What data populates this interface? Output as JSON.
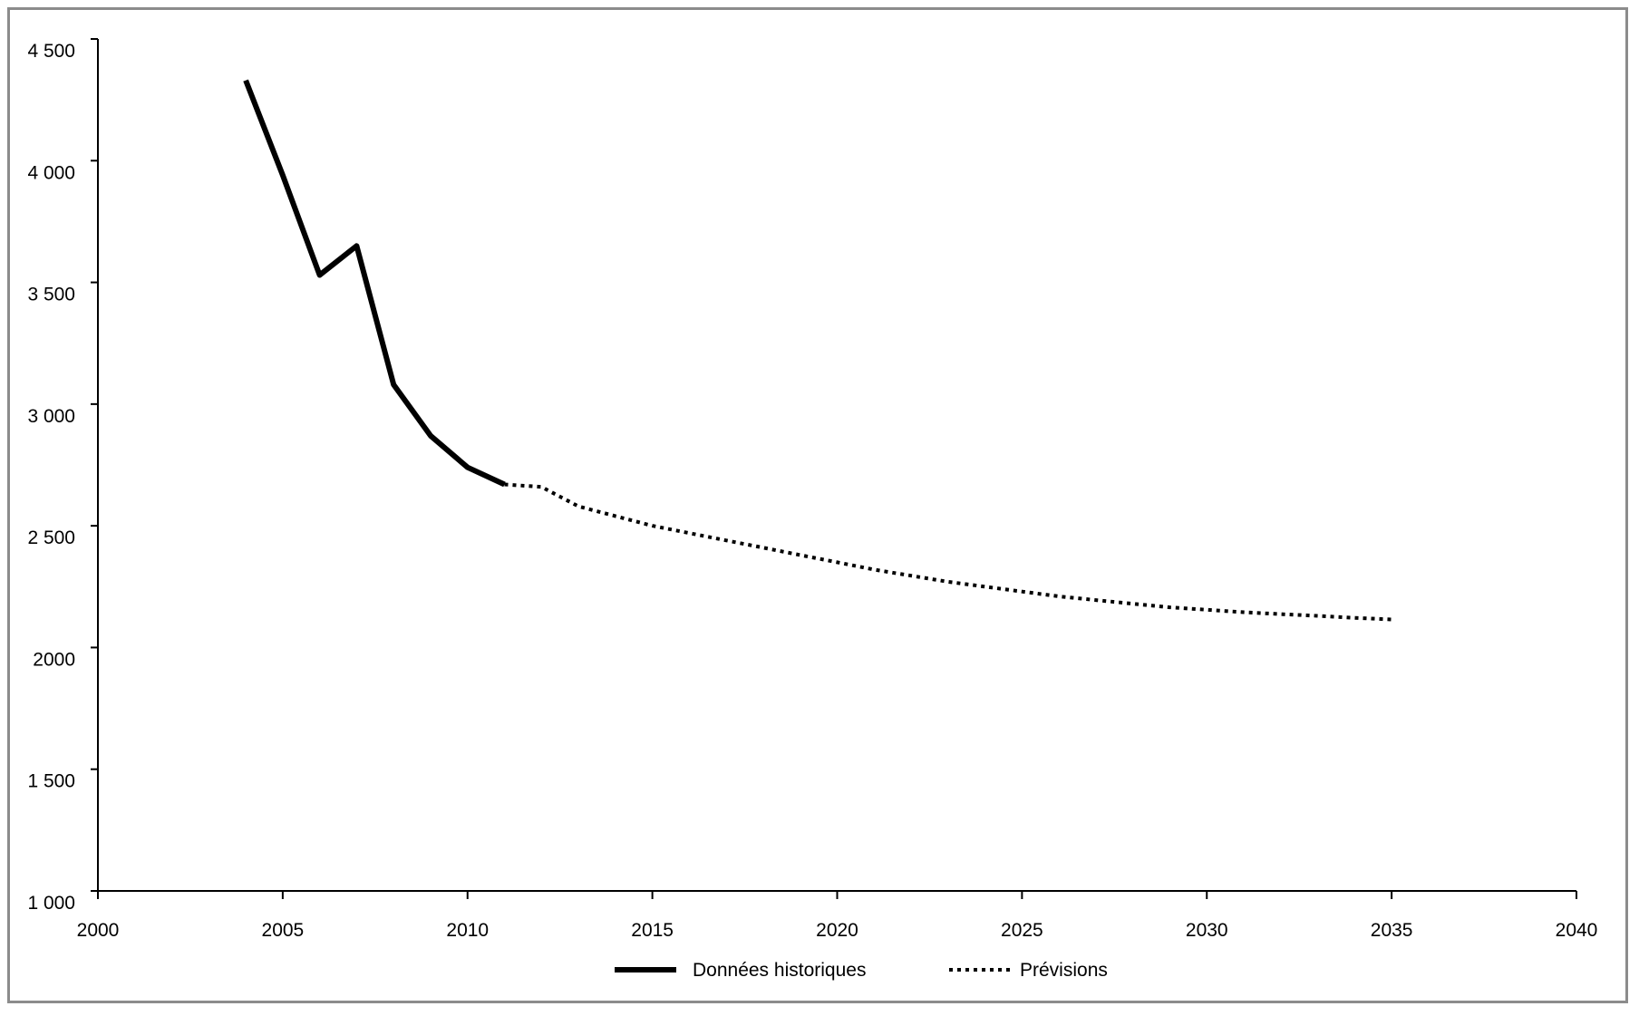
{
  "chart_data": {
    "type": "line",
    "title": "",
    "xlabel": "",
    "ylabel": "",
    "xlim": [
      2000,
      2040
    ],
    "ylim": [
      1000,
      4500
    ],
    "x_ticks": [
      2000,
      2005,
      2010,
      2015,
      2020,
      2025,
      2030,
      2035,
      2040
    ],
    "y_ticks": [
      1000,
      1500,
      2000,
      2500,
      3000,
      3500,
      4000,
      4500
    ],
    "y_tick_labels": [
      "1 000",
      "1 500",
      "2000",
      "2 500",
      "3 000",
      "3 500",
      "4 000",
      "4 500"
    ],
    "grid": false,
    "legend_position": "bottom",
    "series": [
      {
        "name": "Données historiques",
        "style": "solid",
        "color": "#000000",
        "points": [
          [
            2004,
            4330
          ],
          [
            2005,
            3940
          ],
          [
            2006,
            3530
          ],
          [
            2007,
            3650
          ],
          [
            2008,
            3080
          ],
          [
            2009,
            2870
          ],
          [
            2010,
            2740
          ],
          [
            2011,
            2670
          ]
        ]
      },
      {
        "name": "Prévisions",
        "style": "dotted",
        "color": "#000000",
        "points": [
          [
            2011,
            2670
          ],
          [
            2012,
            2660
          ],
          [
            2013,
            2580
          ],
          [
            2014,
            2540
          ],
          [
            2015,
            2500
          ],
          [
            2016,
            2470
          ],
          [
            2017,
            2440
          ],
          [
            2018,
            2410
          ],
          [
            2019,
            2380
          ],
          [
            2020,
            2350
          ],
          [
            2021,
            2320
          ],
          [
            2022,
            2295
          ],
          [
            2023,
            2270
          ],
          [
            2024,
            2250
          ],
          [
            2025,
            2230
          ],
          [
            2026,
            2210
          ],
          [
            2027,
            2195
          ],
          [
            2028,
            2180
          ],
          [
            2029,
            2165
          ],
          [
            2030,
            2155
          ],
          [
            2031,
            2145
          ],
          [
            2032,
            2137
          ],
          [
            2033,
            2130
          ],
          [
            2034,
            2122
          ],
          [
            2035,
            2115
          ]
        ]
      }
    ]
  }
}
